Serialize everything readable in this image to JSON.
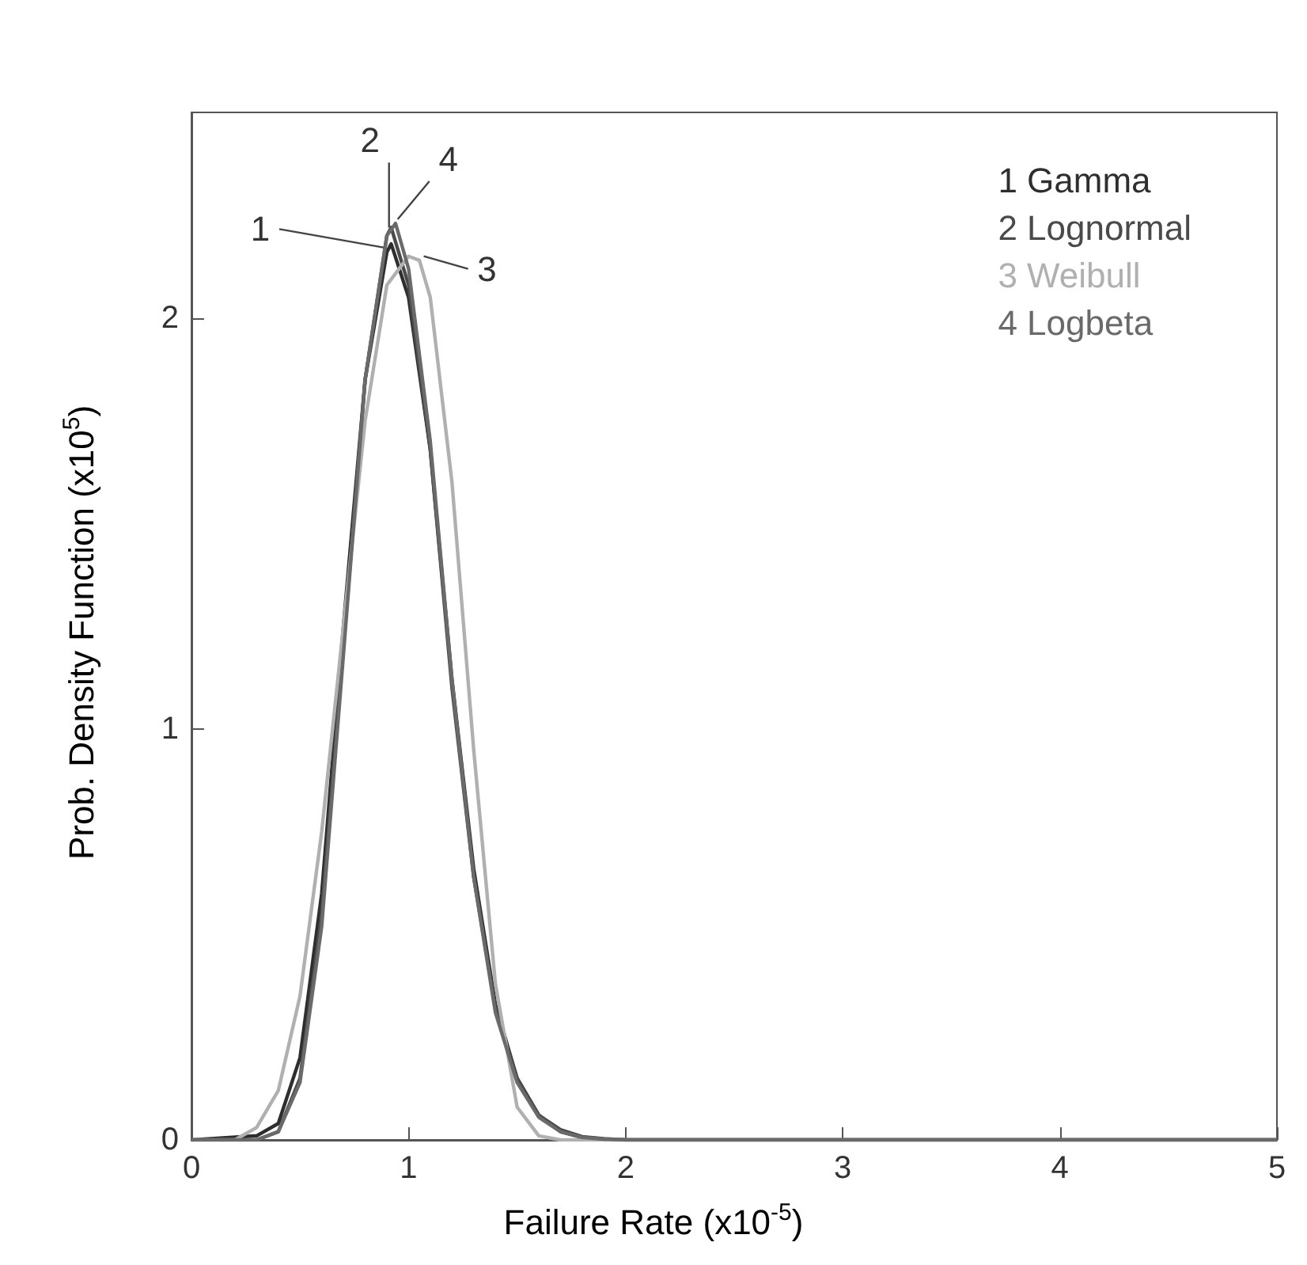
{
  "chart_data": {
    "type": "line",
    "xlabel": "Failure Rate (x10$^{-5}$)",
    "ylabel": "Prob. Density Function (x10$^{5}$)",
    "xlim": [
      0,
      5
    ],
    "ylim": [
      0,
      2.5
    ],
    "xticks": [
      0,
      1,
      2,
      3,
      4,
      5
    ],
    "yticks": [
      0,
      1,
      2
    ],
    "grid": false,
    "legend": "top right",
    "marker": "none",
    "line_style": "solid",
    "series": [
      {
        "name": "1 Gamma",
        "color": "#2e2e2e",
        "x": [
          0,
          0.3,
          0.4,
          0.5,
          0.6,
          0.7,
          0.8,
          0.9,
          0.92,
          1.0,
          1.1,
          1.2,
          1.3,
          1.4,
          1.5,
          1.6,
          1.7,
          1.8,
          1.9,
          2.0,
          5
        ],
        "values": [
          0,
          0.01,
          0.04,
          0.2,
          0.6,
          1.25,
          1.85,
          2.16,
          2.18,
          2.05,
          1.68,
          1.12,
          0.66,
          0.33,
          0.15,
          0.06,
          0.02,
          0.006,
          0.002,
          0,
          0
        ]
      },
      {
        "name": "2 Lognormal",
        "color": "#4a4a4a",
        "x": [
          0,
          0.3,
          0.4,
          0.5,
          0.6,
          0.7,
          0.8,
          0.9,
          0.92,
          1.0,
          1.1,
          1.2,
          1.3,
          1.4,
          1.5,
          1.6,
          1.7,
          1.8,
          1.9,
          2.0,
          5
        ],
        "values": [
          0,
          0,
          0.02,
          0.15,
          0.55,
          1.2,
          1.85,
          2.2,
          2.22,
          2.08,
          1.68,
          1.1,
          0.64,
          0.32,
          0.15,
          0.06,
          0.025,
          0.008,
          0.003,
          0,
          0
        ]
      },
      {
        "name": "3 Weibull",
        "color": "#b0b0b0",
        "x": [
          0,
          0.2,
          0.3,
          0.4,
          0.5,
          0.6,
          0.7,
          0.8,
          0.9,
          1.0,
          1.05,
          1.1,
          1.2,
          1.3,
          1.4,
          1.5,
          1.6,
          1.7,
          5
        ],
        "values": [
          0,
          0,
          0.03,
          0.12,
          0.35,
          0.75,
          1.25,
          1.75,
          2.08,
          2.15,
          2.14,
          2.05,
          1.6,
          0.95,
          0.38,
          0.08,
          0.01,
          0,
          0
        ]
      },
      {
        "name": "4 Logbeta",
        "color": "#6a6a6a",
        "x": [
          0,
          0.3,
          0.4,
          0.5,
          0.6,
          0.7,
          0.8,
          0.9,
          0.94,
          1.0,
          1.1,
          1.2,
          1.3,
          1.4,
          1.5,
          1.6,
          1.7,
          1.8,
          1.9,
          2.0,
          5
        ],
        "values": [
          0,
          0,
          0.02,
          0.14,
          0.52,
          1.18,
          1.85,
          2.2,
          2.23,
          2.12,
          1.7,
          1.12,
          0.64,
          0.31,
          0.14,
          0.055,
          0.02,
          0.006,
          0.002,
          0,
          0
        ]
      }
    ],
    "annotations": [
      {
        "text": "1",
        "x": 0.9,
        "y": 2.17
      },
      {
        "text": "2",
        "x": 0.91,
        "y": 2.22
      },
      {
        "text": "3",
        "x": 1.07,
        "y": 2.15
      },
      {
        "text": "4",
        "x": 0.95,
        "y": 2.24
      }
    ]
  }
}
